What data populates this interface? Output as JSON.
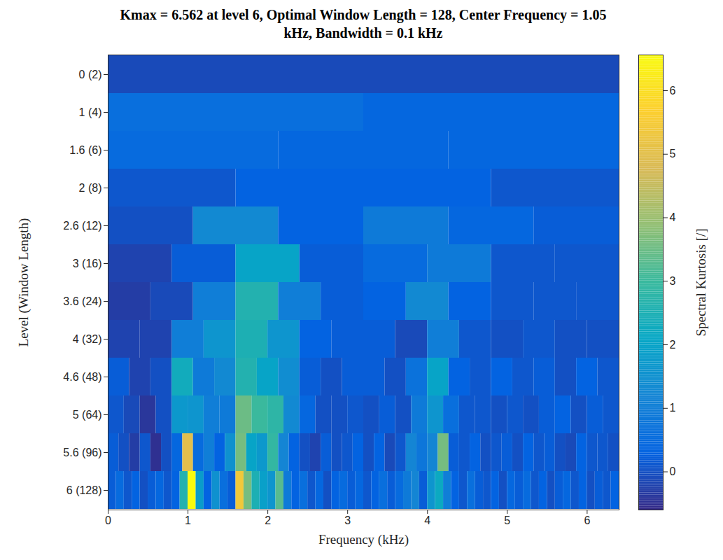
{
  "chart_data": {
    "type": "heatmap",
    "title": "Kmax = 6.562 at level 6, Optimal Window Length = 128, Center Frequency = 1.05 kHz, Bandwidth = 0.1 kHz",
    "x_label": "Frequency (kHz)",
    "y_label": "Level (Window Length)",
    "colorbar_label": "Spectral Kurtosis [/]",
    "xlim": [
      0,
      6.4
    ],
    "xticks": [
      0,
      1,
      2,
      3,
      4,
      5,
      6
    ],
    "clim": [
      -0.6,
      6.562
    ],
    "cticks": [
      0,
      1,
      2,
      3,
      4,
      5,
      6
    ],
    "rows": [
      {
        "label": "0 (2)",
        "values": [
          -0.1
        ]
      },
      {
        "label": "1 (4)",
        "values": [
          0.6,
          0.4
        ]
      },
      {
        "label": "1.6 (6)",
        "values": [
          0.5,
          0.4,
          0.4
        ]
      },
      {
        "label": "2 (8)",
        "values": [
          0.1,
          0.3,
          0.3,
          0.1
        ]
      },
      {
        "label": "2.6 (12)",
        "values": [
          0.0,
          1.3,
          0.3,
          0.9,
          0.4,
          0.2
        ]
      },
      {
        "label": "3 (16)",
        "values": [
          -0.2,
          0.2,
          2.0,
          0.2,
          0.5,
          0.9,
          0.1,
          0.1
        ]
      },
      {
        "label": "3.6 (24)",
        "values": [
          -0.3,
          -0.1,
          1.0,
          2.6,
          1.0,
          0.2,
          0.3,
          1.3,
          0.3,
          0.1,
          0.1,
          0.1
        ]
      },
      {
        "label": "4 (32)",
        "values": [
          -0.2,
          -0.2,
          1.0,
          1.6,
          2.5,
          1.6,
          0.3,
          0.2,
          0.2,
          -0.1,
          1.0,
          0.1,
          0.0,
          0.1,
          0.0,
          0.0
        ]
      },
      {
        "label": "4.6 (48)",
        "values": [
          0.2,
          -0.2,
          0.0,
          2.3,
          0.9,
          1.3,
          2.6,
          2.0,
          1.4,
          0.2,
          0.0,
          0.2,
          0.2,
          0.0,
          0.7,
          2.0,
          0.3,
          0.1,
          0.3,
          0.1,
          0.2,
          0.0,
          0.3,
          0.1
        ]
      },
      {
        "label": "5 (64)",
        "values": [
          0.1,
          -0.1,
          -0.4,
          0.0,
          1.7,
          1.6,
          1.0,
          0.9,
          3.5,
          3.0,
          2.8,
          1.3,
          0.4,
          0.0,
          0.0,
          0.1,
          0.0,
          0.2,
          0.0,
          0.9,
          1.6,
          0.6,
          0.1,
          0.1,
          0.0,
          0.1,
          0.0,
          0.2,
          0.3,
          0.0,
          0.2,
          0.1
        ]
      },
      {
        "label": "5.6 (96)",
        "values": [
          0.2,
          0.0,
          -0.3,
          0.1,
          -0.5,
          0.0,
          0.4,
          5.0,
          0.5,
          1.0,
          0.3,
          1.5,
          3.6,
          2.0,
          1.7,
          2.9,
          1.2,
          0.3,
          0.0,
          -0.2,
          0.2,
          0.0,
          0.1,
          0.3,
          0.0,
          0.3,
          -0.1,
          0.1,
          1.2,
          0.8,
          1.2,
          3.6,
          0.2,
          0.1,
          0.3,
          0.0,
          0.1,
          0.2,
          0.0,
          0.3,
          0.1,
          0.2,
          0.0,
          -0.1,
          0.3,
          0.1,
          0.1,
          0.0
        ]
      },
      {
        "label": "6 (128)",
        "values": [
          0.2,
          0.5,
          0.1,
          0.3,
          0.0,
          0.2,
          0.4,
          0.1,
          0.3,
          2.6,
          6.562,
          1.8,
          0.3,
          1.5,
          0.6,
          0.2,
          5.4,
          3.6,
          2.5,
          1.9,
          1.6,
          3.3,
          0.9,
          0.3,
          0.6,
          0.1,
          0.4,
          0.0,
          0.3,
          0.5,
          0.2,
          0.4,
          0.1,
          0.3,
          0.6,
          0.2,
          0.5,
          0.9,
          1.2,
          0.2,
          1.6,
          2.2,
          1.0,
          0.3,
          0.1,
          0.6,
          0.2,
          0.1,
          0.3,
          0.0,
          0.4,
          0.2,
          0.5,
          0.1,
          0.3,
          0.0,
          0.2,
          0.4,
          0.1,
          0.3,
          0.0,
          0.2,
          0.1,
          0.3
        ]
      }
    ]
  }
}
